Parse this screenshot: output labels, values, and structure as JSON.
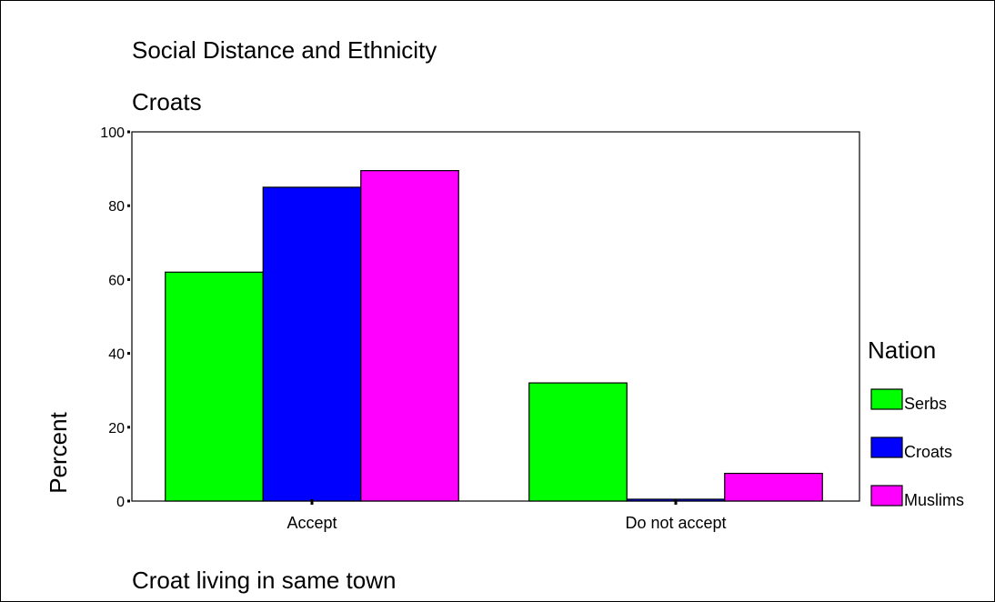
{
  "chart_data": {
    "type": "bar",
    "title": "Social Distance and Ethnicity",
    "subtitle": "Croats",
    "xlabel": "Croat living in same town",
    "ylabel": "Percent",
    "categories": [
      "Accept",
      "Do not accept"
    ],
    "series": [
      {
        "name": "Serbs",
        "color": "#00ff00",
        "values": [
          62,
          32
        ]
      },
      {
        "name": "Croats",
        "color": "#0000ff",
        "values": [
          85,
          0.5
        ]
      },
      {
        "name": "Muslims",
        "color": "#ff00ff",
        "values": [
          89.5,
          7.5
        ]
      }
    ],
    "ylim": [
      0,
      100
    ],
    "yticks": [
      "0",
      "20",
      "40",
      "60",
      "80",
      "100"
    ],
    "legend_title": "Nation",
    "legend_position": "right",
    "grid": false
  }
}
